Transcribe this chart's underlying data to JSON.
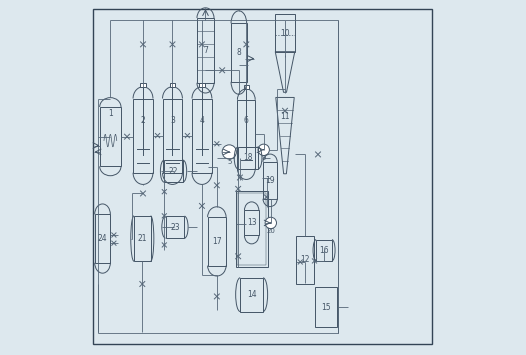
{
  "fig_width": 5.26,
  "fig_height": 3.55,
  "dpi": 100,
  "bg_color": "#dde8ee",
  "line_color": "#445566",
  "border_color": "#334455",
  "pipe_color": "#556677"
}
